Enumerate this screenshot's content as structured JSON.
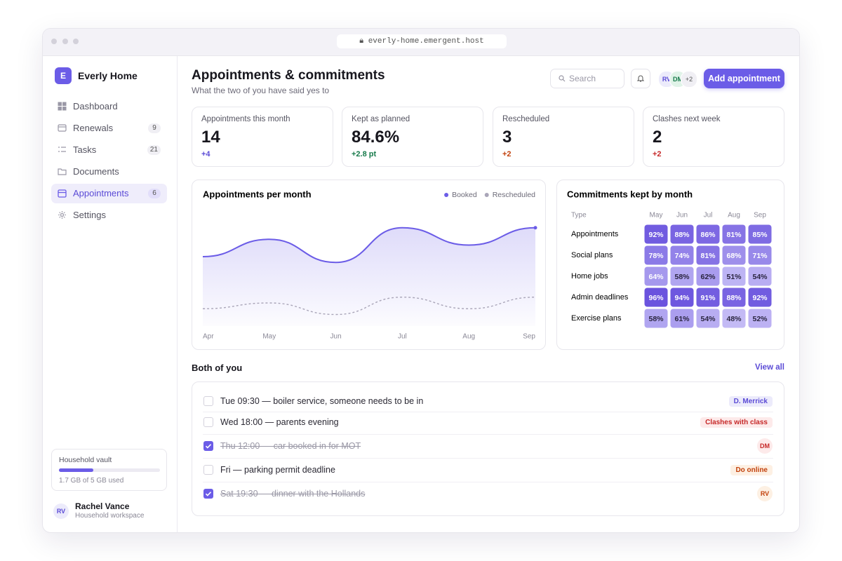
{
  "browser": {
    "url": "everly-home.emergent.host"
  },
  "sidebar": {
    "logo": "E",
    "brand": "Everly Home",
    "nav": [
      {
        "label": "Dashboard"
      },
      {
        "label": "Renewals",
        "badge": 9
      },
      {
        "label": "Tasks",
        "badge": 21
      },
      {
        "label": "Documents"
      },
      {
        "label": "Appointments",
        "badge": 6,
        "active": true
      },
      {
        "label": "Settings"
      }
    ],
    "vault": {
      "title": "Household vault",
      "used": 1.7,
      "total": 5,
      "caption": "1.7 GB of 5 GB used",
      "color": "#6b5ce7"
    },
    "user": {
      "initials": "RV",
      "name": "Rachel Vance",
      "role": "Household workspace"
    }
  },
  "header": {
    "title": "Appointments & commitments",
    "subtitle": "What the two of you have said yes to",
    "search": "Search",
    "avatars": [
      "RV",
      "DM"
    ],
    "more": "+2",
    "button": "Add appointment"
  },
  "stats": [
    {
      "label": "Appointments this month",
      "value": "14",
      "delta": "+4",
      "tone": "purple"
    },
    {
      "label": "Kept as planned",
      "value": "84.6%",
      "delta": "+2.8 pt",
      "tone": "green"
    },
    {
      "label": "Rescheduled",
      "value": "3",
      "delta": "+2",
      "tone": "orange"
    },
    {
      "label": "Clashes next week",
      "value": "2",
      "delta": "+2",
      "tone": "red"
    }
  ],
  "chart_data": [
    {
      "type": "line",
      "title": "Appointments per month",
      "categories": [
        "Apr",
        "May",
        "Jun",
        "Jul",
        "Aug",
        "Sep"
      ],
      "ylim": [
        0,
        20
      ],
      "legend": "top-right",
      "series": [
        {
          "name": "Booked",
          "color": "#6b5ce7",
          "area": true,
          "values": [
            12,
            15,
            11,
            17,
            14,
            17
          ]
        },
        {
          "name": "Rescheduled",
          "color": "#a9a5b8",
          "dashed": true,
          "values": [
            3,
            4,
            2,
            5,
            3,
            5
          ]
        }
      ]
    },
    {
      "type": "heatmap",
      "title": "Commitments kept by month",
      "row_header": "Type",
      "columns": [
        "May",
        "Jun",
        "Jul",
        "Aug",
        "Sep"
      ],
      "rows": [
        "Appointments",
        "Social plans",
        "Home jobs",
        "Admin deadlines",
        "Exercise plans"
      ],
      "colors": [
        "#c3baf5",
        "#6a53de"
      ],
      "values": [
        [
          92,
          88,
          86,
          81,
          85
        ],
        [
          78,
          74,
          81,
          68,
          71
        ],
        [
          64,
          58,
          62,
          51,
          54
        ],
        [
          96,
          94,
          91,
          88,
          92
        ],
        [
          58,
          61,
          54,
          48,
          52
        ]
      ],
      "value_labels": [
        [
          "92%",
          "88%",
          "86%",
          "81%",
          "85%"
        ],
        [
          "78%",
          "74%",
          "81%",
          "68%",
          "71%"
        ],
        [
          "64%",
          "58%",
          "62%",
          "51%",
          "54%"
        ],
        [
          "96%",
          "94%",
          "91%",
          "88%",
          "92%"
        ],
        [
          "58%",
          "61%",
          "54%",
          "48%",
          "52%"
        ]
      ]
    }
  ],
  "list": {
    "title": "Both of you",
    "link": "View all",
    "items": [
      {
        "text": "Tue 09:30 — boiler service, someone needs to be in",
        "done": false,
        "tag": "D. Merrick",
        "tone": "purple"
      },
      {
        "text": "Wed 18:00 — parents evening",
        "done": false,
        "tag": "Clashes with class",
        "tone": "red"
      },
      {
        "text": "Thu 12:00 — car booked in for MOT",
        "done": true,
        "tag": "DM",
        "tone": "red",
        "avatar": true
      },
      {
        "text": "Fri — parking permit deadline",
        "done": false,
        "tag": "Do online",
        "tone": "orange"
      },
      {
        "text": "Sat 19:30 — dinner with the Hollands",
        "done": true,
        "tag": "RV",
        "tone": "orange",
        "avatar": true
      }
    ]
  }
}
